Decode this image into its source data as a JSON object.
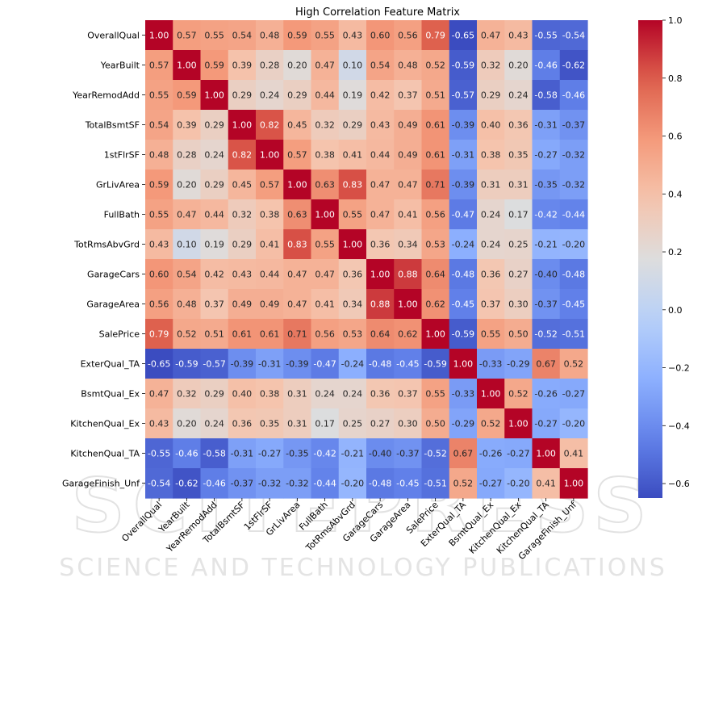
{
  "watermark": {
    "line1": "SCITEPRESS",
    "line2": "SCIENCE AND TECHNOLOGY PUBLICATIONS"
  },
  "chart_data": {
    "type": "heatmap",
    "title": "High Correlation Feature Matrix",
    "labels": [
      "OverallQual",
      "YearBuilt",
      "YearRemodAdd",
      "TotalBsmtSF",
      "1stFlrSF",
      "GrLivArea",
      "FullBath",
      "TotRmsAbvGrd",
      "GarageCars",
      "GarageArea",
      "SalePrice",
      "ExterQual_TA",
      "BsmtQual_Ex",
      "KitchenQual_Ex",
      "KitchenQual_TA",
      "GarageFinish_Unf"
    ],
    "values": [
      [
        1.0,
        0.57,
        0.55,
        0.54,
        0.48,
        0.59,
        0.55,
        0.43,
        0.6,
        0.56,
        0.79,
        -0.65,
        0.47,
        0.43,
        -0.55,
        -0.54
      ],
      [
        0.57,
        1.0,
        0.59,
        0.39,
        0.28,
        0.2,
        0.47,
        0.1,
        0.54,
        0.48,
        0.52,
        -0.59,
        0.32,
        0.2,
        -0.46,
        -0.62
      ],
      [
        0.55,
        0.59,
        1.0,
        0.29,
        0.24,
        0.29,
        0.44,
        0.19,
        0.42,
        0.37,
        0.51,
        -0.57,
        0.29,
        0.24,
        -0.58,
        -0.46
      ],
      [
        0.54,
        0.39,
        0.29,
        1.0,
        0.82,
        0.45,
        0.32,
        0.29,
        0.43,
        0.49,
        0.61,
        -0.39,
        0.4,
        0.36,
        -0.31,
        -0.37
      ],
      [
        0.48,
        0.28,
        0.24,
        0.82,
        1.0,
        0.57,
        0.38,
        0.41,
        0.44,
        0.49,
        0.61,
        -0.31,
        0.38,
        0.35,
        -0.27,
        -0.32
      ],
      [
        0.59,
        0.2,
        0.29,
        0.45,
        0.57,
        1.0,
        0.63,
        0.83,
        0.47,
        0.47,
        0.71,
        -0.39,
        0.31,
        0.31,
        -0.35,
        -0.32
      ],
      [
        0.55,
        0.47,
        0.44,
        0.32,
        0.38,
        0.63,
        1.0,
        0.55,
        0.47,
        0.41,
        0.56,
        -0.47,
        0.24,
        0.17,
        -0.42,
        -0.44
      ],
      [
        0.43,
        0.1,
        0.19,
        0.29,
        0.41,
        0.83,
        0.55,
        1.0,
        0.36,
        0.34,
        0.53,
        -0.24,
        0.24,
        0.25,
        -0.21,
        -0.2
      ],
      [
        0.6,
        0.54,
        0.42,
        0.43,
        0.44,
        0.47,
        0.47,
        0.36,
        1.0,
        0.88,
        0.64,
        -0.48,
        0.36,
        0.27,
        -0.4,
        -0.48
      ],
      [
        0.56,
        0.48,
        0.37,
        0.49,
        0.49,
        0.47,
        0.41,
        0.34,
        0.88,
        1.0,
        0.62,
        -0.45,
        0.37,
        0.3,
        -0.37,
        -0.45
      ],
      [
        0.79,
        0.52,
        0.51,
        0.61,
        0.61,
        0.71,
        0.56,
        0.53,
        0.64,
        0.62,
        1.0,
        -0.59,
        0.55,
        0.5,
        -0.52,
        -0.51
      ],
      [
        -0.65,
        -0.59,
        -0.57,
        -0.39,
        -0.31,
        -0.39,
        -0.47,
        -0.24,
        -0.48,
        -0.45,
        -0.59,
        1.0,
        -0.33,
        -0.29,
        0.67,
        0.52
      ],
      [
        0.47,
        0.32,
        0.29,
        0.4,
        0.38,
        0.31,
        0.24,
        0.24,
        0.36,
        0.37,
        0.55,
        -0.33,
        1.0,
        0.52,
        -0.26,
        -0.27
      ],
      [
        0.43,
        0.2,
        0.24,
        0.36,
        0.35,
        0.31,
        0.17,
        0.25,
        0.27,
        0.3,
        0.5,
        -0.29,
        0.52,
        1.0,
        -0.27,
        -0.2
      ],
      [
        -0.55,
        -0.46,
        -0.58,
        -0.31,
        -0.27,
        -0.35,
        -0.42,
        -0.21,
        -0.4,
        -0.37,
        -0.52,
        0.67,
        -0.26,
        -0.27,
        1.0,
        0.41
      ],
      [
        -0.54,
        -0.62,
        -0.46,
        -0.37,
        -0.32,
        -0.32,
        -0.44,
        -0.2,
        -0.48,
        -0.45,
        -0.51,
        0.52,
        -0.27,
        -0.2,
        0.41,
        1.0
      ]
    ],
    "colormap": "coolwarm",
    "color_range": [
      -0.65,
      1.0
    ],
    "colorbar_ticks": [
      "1.0",
      "0.8",
      "0.6",
      "0.4",
      "0.2",
      "0.0",
      "−0.2",
      "−0.4",
      "−0.6"
    ],
    "colorbar_tick_values": [
      1.0,
      0.8,
      0.6,
      0.4,
      0.2,
      0.0,
      -0.2,
      -0.4,
      -0.6
    ]
  }
}
